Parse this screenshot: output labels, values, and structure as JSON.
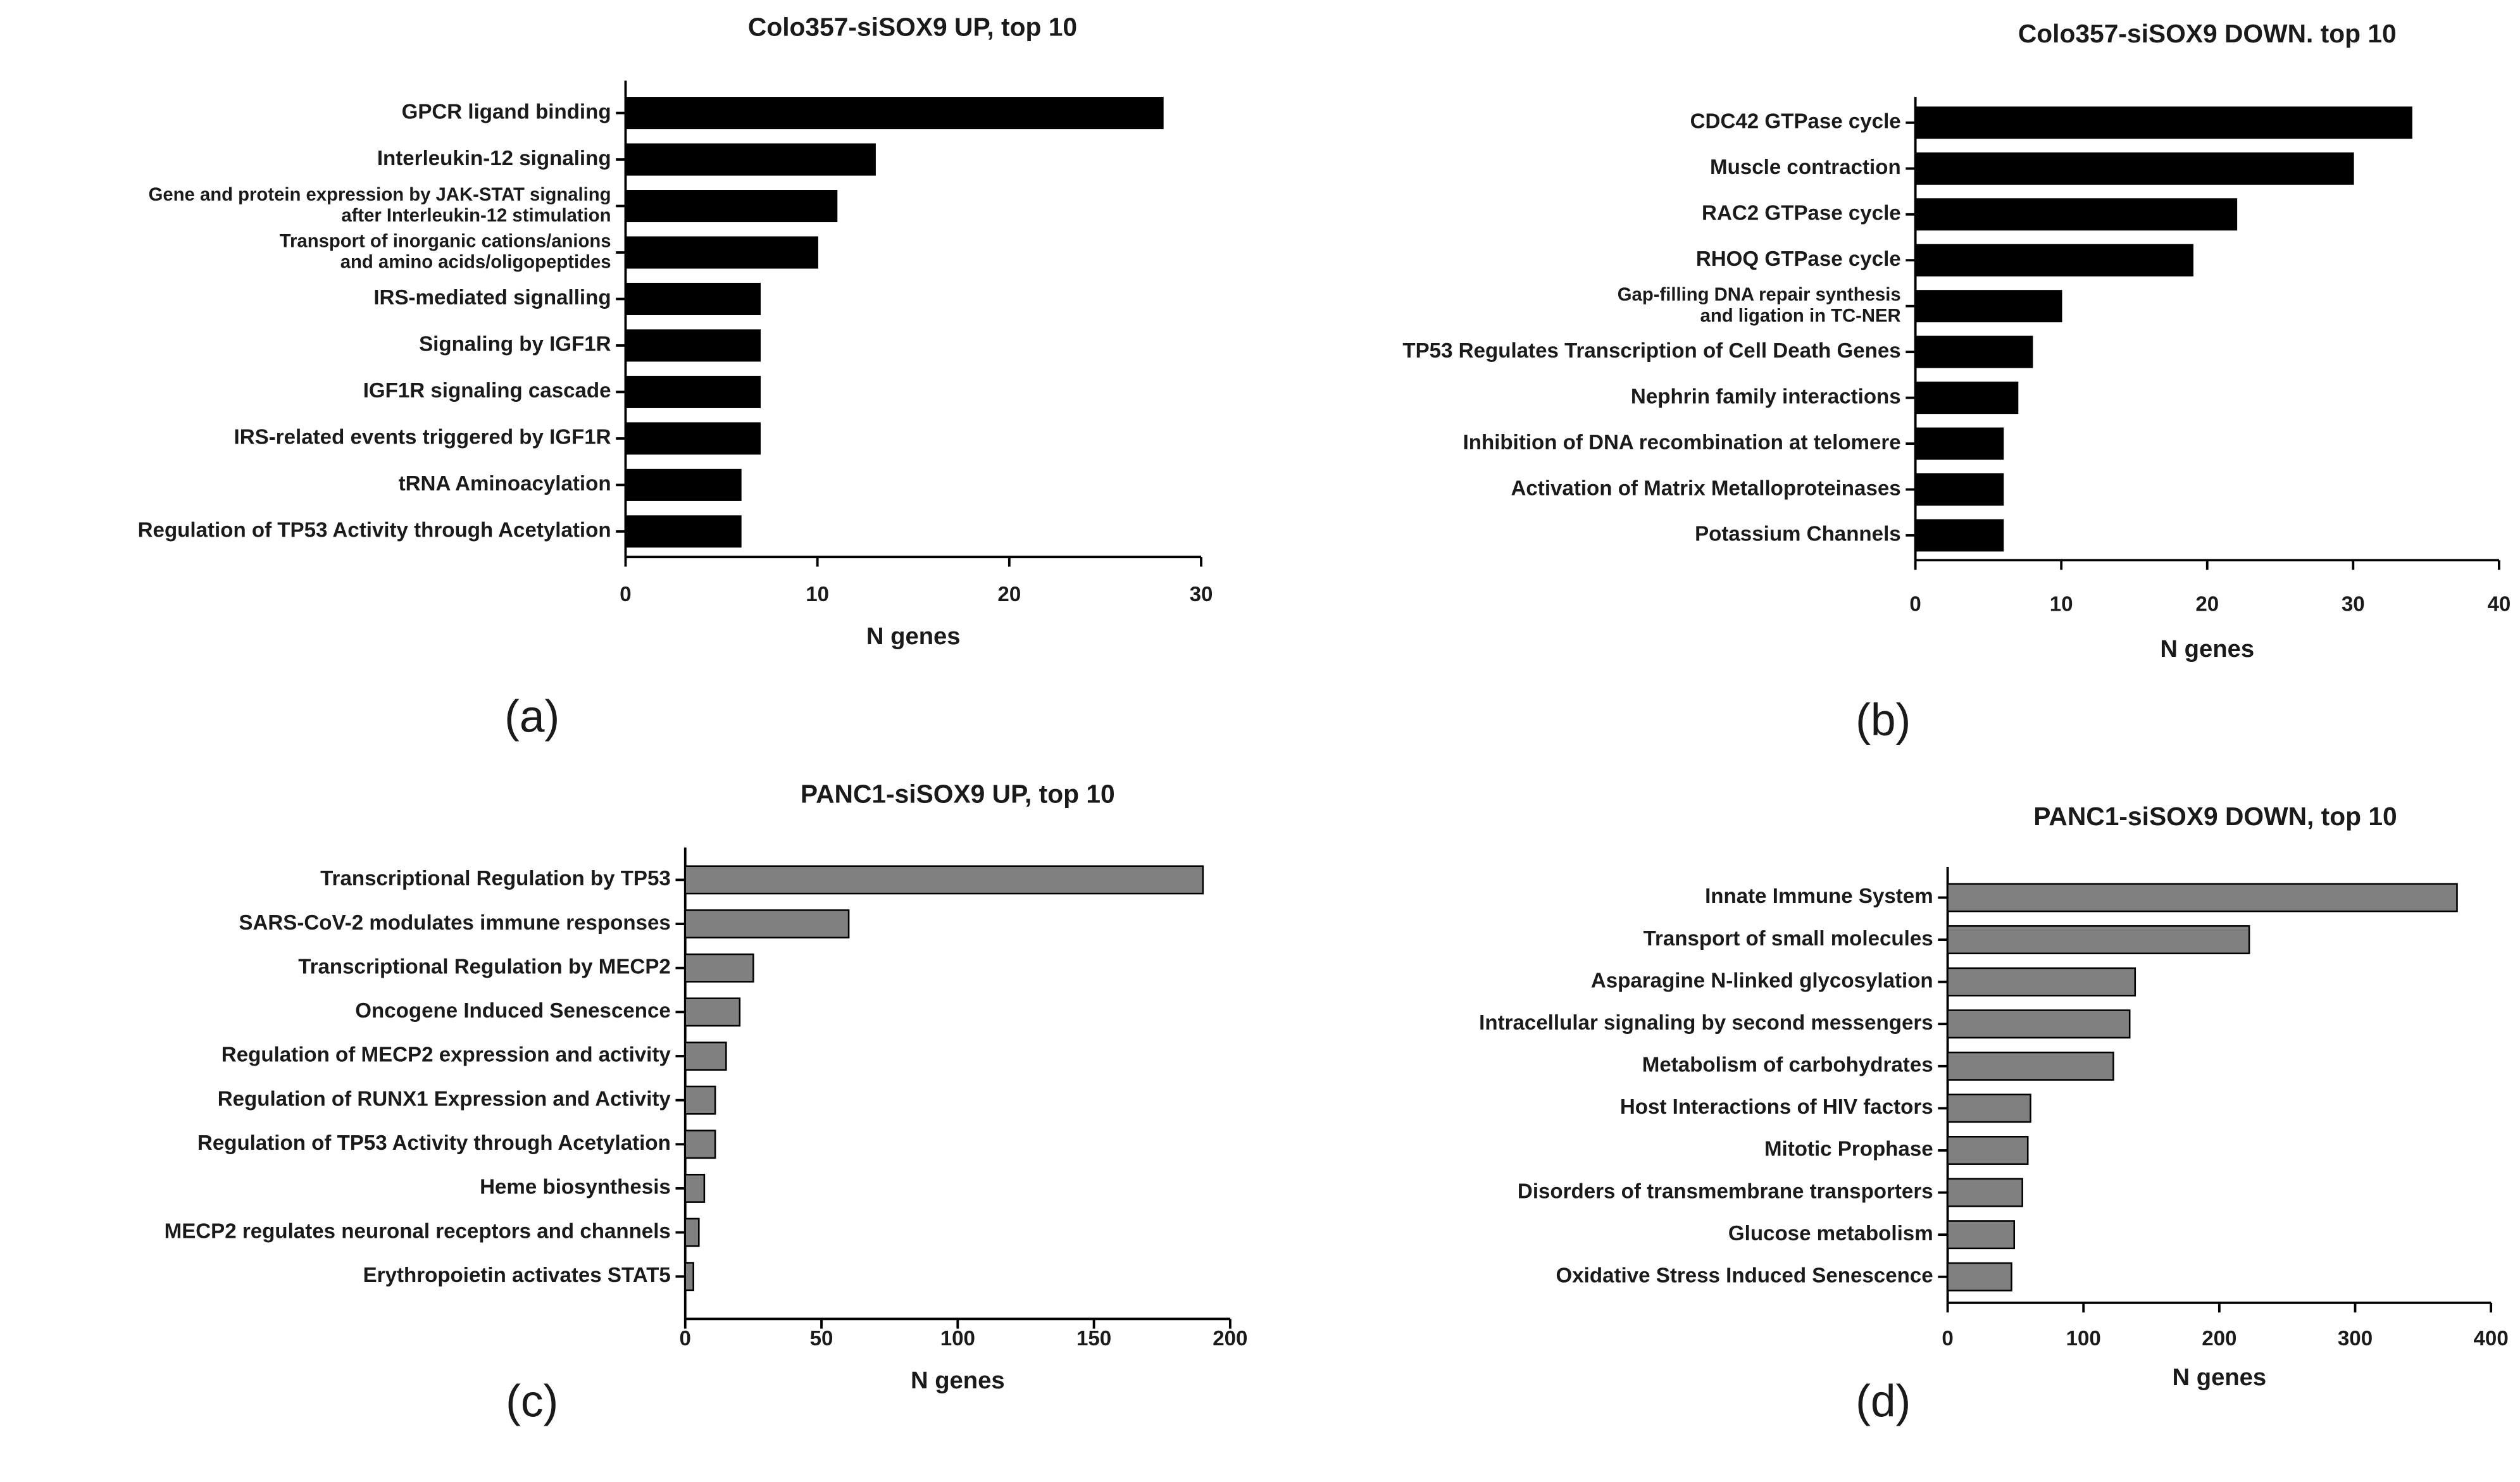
{
  "chart_data": [
    {
      "type": "bar",
      "orientation": "horizontal",
      "title": "Colo357-siSOX9 UP, top 10",
      "xlabel": "N genes",
      "label": "(a)",
      "color": "#000000",
      "categories": [
        "GPCR ligand binding",
        "Interleukin-12 signaling",
        "Gene and protein expression by JAK-STAT signaling\nafter Interleukin-12 stimulation",
        "Transport of inorganic cations/anions\nand amino acids/oligopeptides",
        "IRS-mediated signalling",
        "Signaling by IGF1R",
        "IGF1R signaling cascade",
        "IRS-related events triggered by IGF1R",
        "tRNA Aminoacylation",
        "Regulation of TP53 Activity through Acetylation"
      ],
      "values": [
        28,
        13,
        11,
        10,
        7,
        7,
        7,
        7,
        6,
        6
      ],
      "xlim": [
        0,
        30
      ],
      "xticks": [
        0,
        10,
        20,
        30
      ]
    },
    {
      "type": "bar",
      "orientation": "horizontal",
      "title": "Colo357-siSOX9 DOWN. top 10",
      "xlabel": "N genes",
      "label": "(b)",
      "color": "#000000",
      "categories": [
        "CDC42 GTPase cycle",
        "Muscle contraction",
        "RAC2 GTPase cycle",
        "RHOQ GTPase cycle",
        "Gap-filling DNA repair synthesis\nand ligation in TC-NER",
        "TP53 Regulates Transcription of Cell Death Genes",
        "Nephrin family interactions",
        "Inhibition of DNA recombination at telomere",
        "Activation of Matrix Metalloproteinases",
        "Potassium Channels"
      ],
      "values": [
        34,
        30,
        22,
        19,
        10,
        8,
        7,
        6,
        6,
        6
      ],
      "xlim": [
        0,
        40
      ],
      "xticks": [
        0,
        10,
        20,
        30,
        40
      ]
    },
    {
      "type": "bar",
      "orientation": "horizontal",
      "title": "PANC1-siSOX9 UP, top 10",
      "xlabel": "N genes",
      "label": "(c)",
      "color": "#808080",
      "categories": [
        "Transcriptional Regulation by TP53",
        "SARS-CoV-2 modulates immune responses",
        "Transcriptional Regulation by MECP2",
        "Oncogene Induced Senescence",
        "Regulation of MECP2 expression and activity",
        "Regulation of RUNX1 Expression and Activity",
        "Regulation of TP53 Activity through Acetylation",
        "Heme biosynthesis",
        "MECP2 regulates neuronal receptors and channels",
        "Erythropoietin activates STAT5"
      ],
      "values": [
        190,
        60,
        25,
        20,
        15,
        11,
        11,
        7,
        5,
        3
      ],
      "xlim": [
        0,
        200
      ],
      "xticks": [
        0,
        50,
        100,
        150,
        200
      ]
    },
    {
      "type": "bar",
      "orientation": "horizontal",
      "title": "PANC1-siSOX9 DOWN, top 10",
      "xlabel": "N genes",
      "label": "(d)",
      "color": "#808080",
      "categories": [
        "Innate Immune System",
        "Transport of small molecules",
        "Asparagine N-linked glycosylation",
        "Intracellular signaling by second messengers",
        "Metabolism of carbohydrates",
        "Host Interactions of HIV factors",
        "Mitotic Prophase",
        "Disorders of transmembrane transporters",
        "Glucose metabolism",
        "Oxidative Stress Induced Senescence"
      ],
      "values": [
        375,
        222,
        138,
        134,
        122,
        61,
        59,
        55,
        49,
        47
      ],
      "xlim": [
        0,
        400
      ],
      "xticks": [
        0,
        100,
        200,
        300,
        400
      ]
    }
  ]
}
